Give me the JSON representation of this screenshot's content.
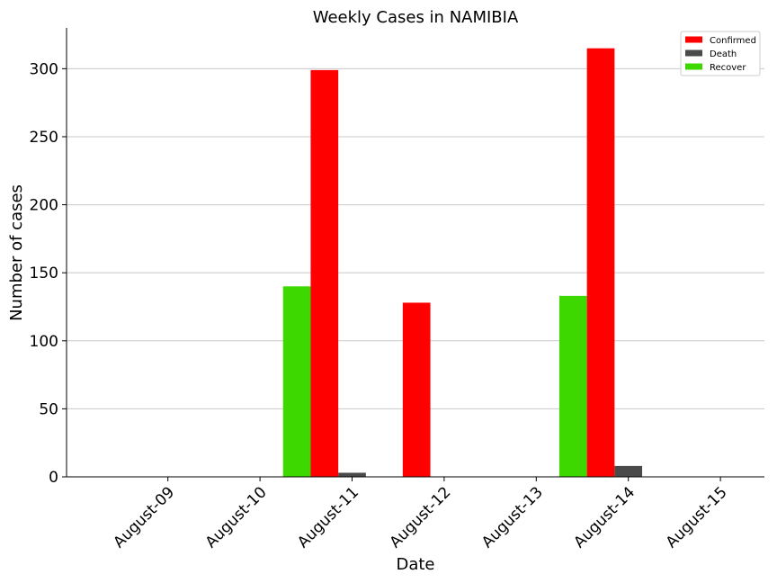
{
  "chart_data": {
    "type": "bar",
    "title": "Weekly Cases in NAMIBIA",
    "xlabel": "Date",
    "ylabel": "Number of cases",
    "categories": [
      "August-09",
      "August-10",
      "August-11",
      "August-12",
      "August-13",
      "August-14",
      "August-15"
    ],
    "ylim": [
      0,
      330
    ],
    "yticks": [
      0,
      50,
      100,
      150,
      200,
      250,
      300
    ],
    "grid": "horizontal",
    "legend_position": "top-right",
    "series": [
      {
        "name": "Recover",
        "color": "#3dd800",
        "values": [
          0,
          0,
          140,
          0,
          0,
          133,
          0
        ]
      },
      {
        "name": "Confirmed",
        "color": "#ff0000",
        "values": [
          0,
          0,
          299,
          128,
          0,
          315,
          0
        ]
      },
      {
        "name": "Death",
        "color": "#4a4a4a",
        "values": [
          0,
          0,
          3,
          0,
          0,
          8,
          0
        ]
      }
    ],
    "legend_order": [
      "Confirmed",
      "Death",
      "Recover"
    ]
  }
}
